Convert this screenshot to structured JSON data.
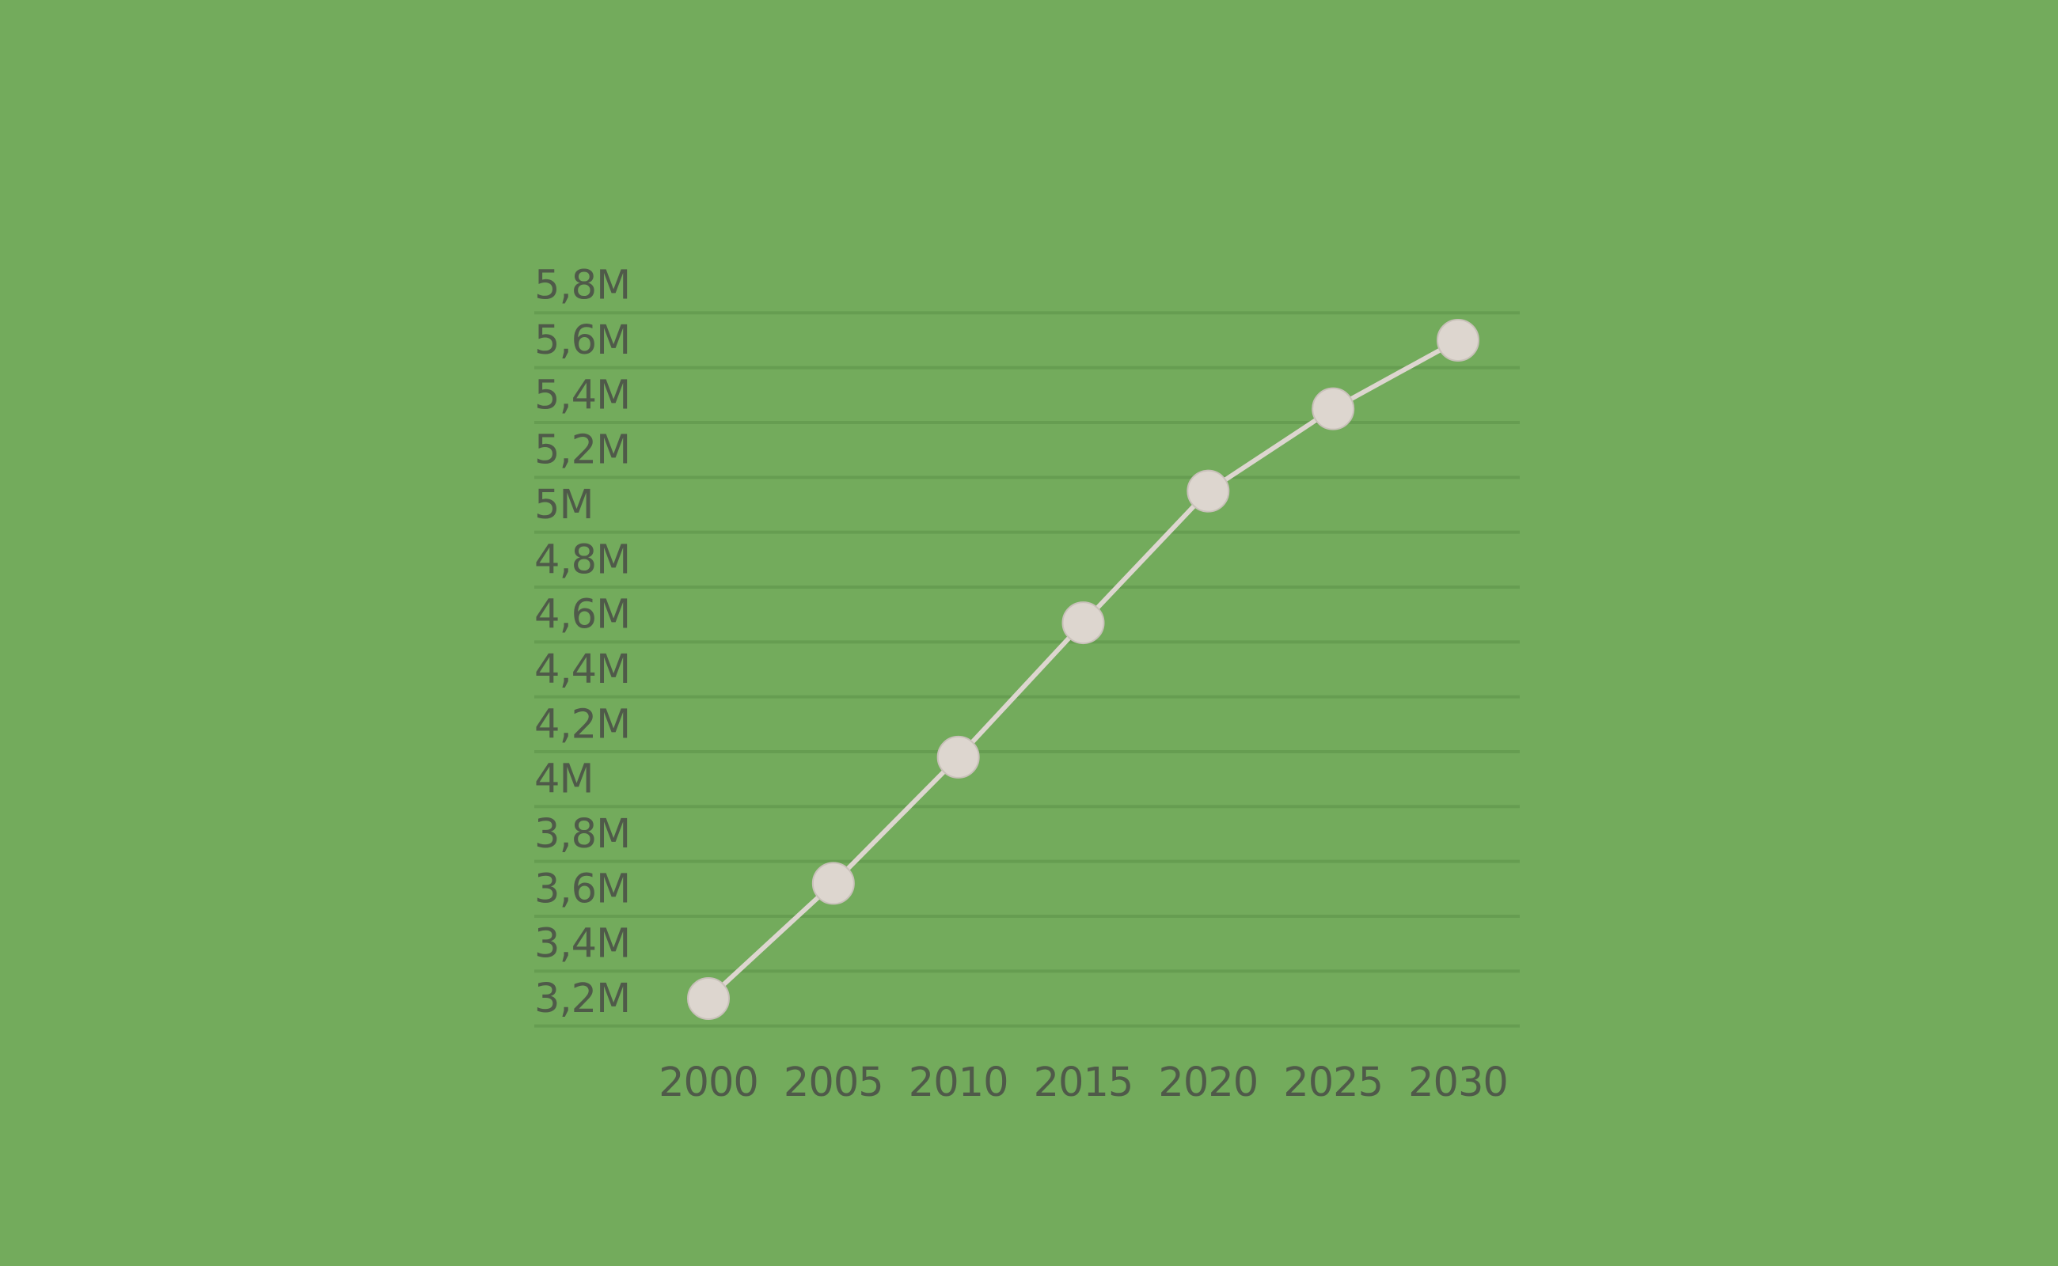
{
  "chart_data": {
    "type": "line",
    "title": "",
    "xlabel": "",
    "ylabel": "",
    "x": [
      2000,
      2005,
      2010,
      2015,
      2020,
      2025,
      2030
    ],
    "x_tick_labels": [
      "2000",
      "2005",
      "2010",
      "2015",
      "2020",
      "2025",
      "2030"
    ],
    "y_tick_values": [
      3200000,
      3400000,
      3600000,
      3800000,
      4000000,
      4200000,
      4400000,
      4600000,
      4800000,
      5000000,
      5200000,
      5400000,
      5600000,
      5800000
    ],
    "y_tick_labels": [
      "3,2M",
      "3,4M",
      "3,6M",
      "3,8M",
      "4M",
      "4,2M",
      "4,4M",
      "4,6M",
      "4,8M",
      "5M",
      "5,2M",
      "5,4M",
      "5,6M",
      "5,8M"
    ],
    "ylim": [
      3100000,
      5800000
    ],
    "grid": true,
    "legend": "none",
    "series": [
      {
        "values": [
          3200000,
          3620000,
          4080000,
          4570000,
          5050000,
          5350000,
          5600000
        ]
      }
    ],
    "colors": {
      "background": "#73ab5c",
      "gridline": "#669d51",
      "line": "#ddd6cf",
      "marker": "#ddd6cf",
      "tick_label": "#4f5a49"
    }
  }
}
